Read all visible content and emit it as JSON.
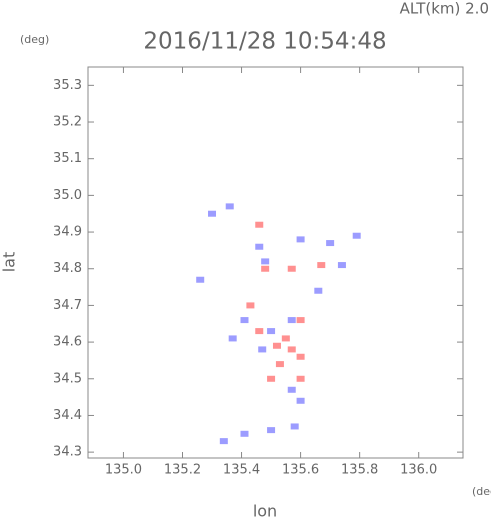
{
  "chart_data": {
    "type": "scatter",
    "title": "2016/11/28 10:54:48",
    "subtitle": "ALT(km) 2.0",
    "ylabel": "lat",
    "xlabel": "lon",
    "yunit": "(deg)",
    "xunit": "(deg)",
    "xlim": [
      134.88,
      136.15
    ],
    "ylim": [
      34.284,
      35.35
    ],
    "xticks": [
      {
        "value": 135,
        "label": "135.0"
      },
      135.2,
      135.4,
      135.6,
      135.8,
      {
        "value": 136,
        "label": "136.0"
      }
    ],
    "yticks": [
      34.3,
      34.4,
      34.5,
      34.6,
      34.7,
      34.8,
      34.9,
      {
        "value": 35,
        "label": "35.0"
      },
      35.1,
      35.2,
      35.3
    ],
    "series": [
      {
        "color": "#7b7bff",
        "x": [
          135.3,
          135.36,
          135.46,
          135.48,
          135.6,
          135.7,
          135.79,
          135.66,
          135.41,
          135.5,
          135.57,
          135.47,
          135.57,
          135.6,
          135.37,
          135.26,
          135.41,
          135.5,
          135.58,
          135.34,
          135.74
        ],
        "values": [
          34.95,
          34.97,
          34.86,
          34.82,
          34.88,
          34.87,
          34.89,
          34.74,
          34.66,
          34.63,
          34.66,
          34.58,
          34.47,
          34.44,
          34.61,
          34.77,
          34.35,
          34.36,
          34.37,
          34.33,
          34.81
        ]
      },
      {
        "color": "#ff6b6b",
        "x": [
          135.46,
          135.48,
          135.57,
          135.67,
          135.6,
          135.46,
          135.52,
          135.57,
          135.6,
          135.53,
          135.5,
          135.6,
          135.55,
          135.43
        ],
        "values": [
          34.92,
          34.8,
          34.8,
          34.81,
          34.66,
          34.63,
          34.59,
          34.58,
          34.56,
          34.54,
          34.5,
          34.5,
          34.61,
          34.7
        ]
      }
    ]
  }
}
